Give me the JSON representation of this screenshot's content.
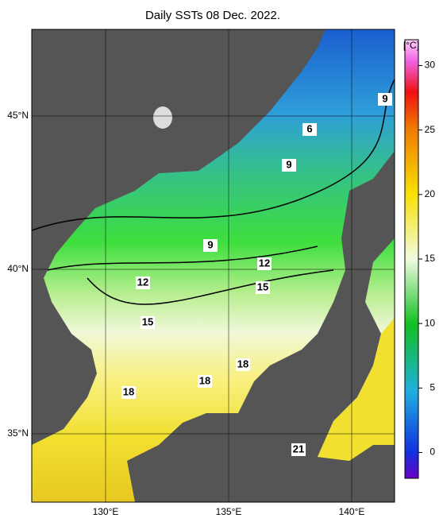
{
  "title": "Daily SSTs 08 Dec. 2022.",
  "latitude_labels": [
    "45°N",
    "40°N",
    "35°N"
  ],
  "longitude_labels": [
    "130°E",
    "135°E",
    "140°E"
  ],
  "colorbar": {
    "unit": "[°C]",
    "range": [
      -2,
      32
    ],
    "ticks": [
      0,
      5,
      10,
      15,
      20,
      25,
      30
    ]
  },
  "contour_labels": [
    "9",
    "6",
    "9",
    "9",
    "12",
    "12",
    "15",
    "15",
    "18",
    "18",
    "18",
    "21"
  ]
}
